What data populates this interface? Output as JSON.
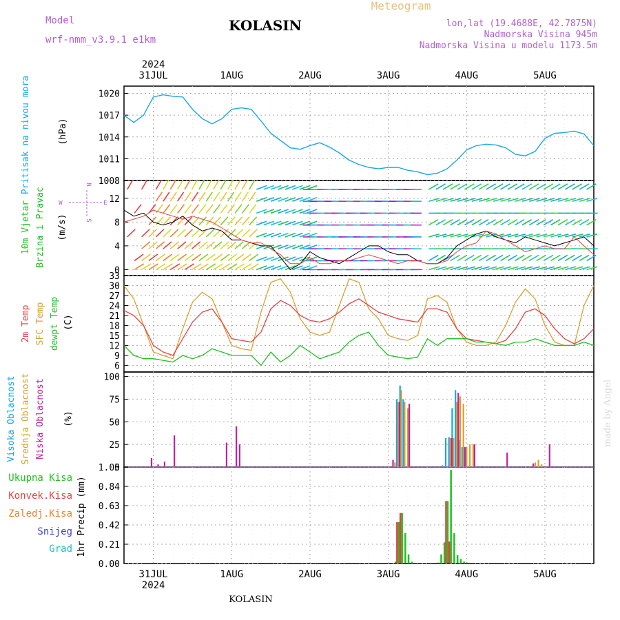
{
  "header": {
    "model_label": "Model",
    "model_name": "wrf-nmm_v3.9.1  e1km",
    "station": "KOLASIN",
    "product": "Meteogram",
    "lonlat": "lon,lat (19.4688E, 42.7875N)",
    "elevation": "Nadmorska Visina 945m",
    "model_elevation": "Nadmorska Visina u modelu 1173.5m"
  },
  "footer": {
    "station": "KOLASIN",
    "credit": "made by Angel"
  },
  "time_axis": {
    "year": "2024",
    "day_labels": [
      "31JUL",
      "1AUG",
      "2AUG",
      "3AUG",
      "4AUG",
      "5AUG"
    ],
    "start_hour_offset": -9,
    "end_hour": 135
  },
  "panels": {
    "pressure": {
      "title": "Pritisak na nivou mora",
      "unit": "(hPa)",
      "color": "#1aa6e8"
    },
    "wind": {
      "title_lines": [
        "10m Vjetar",
        "Brzina i Pravac"
      ],
      "unit": "(m/s)",
      "compass": [
        "N",
        "E",
        "W",
        "S"
      ]
    },
    "temperature": {
      "labels": [
        "2m Temp",
        "SFC Temp",
        "dewpt Temp"
      ],
      "unit": "(C)",
      "colors": {
        "t2m": "#e84040",
        "sfc": "#d9a030",
        "dew": "#20c020"
      }
    },
    "clouds": {
      "labels": [
        "Visoka Oblacnost",
        "Srednja Oblacnost",
        "Niska Oblacnost"
      ],
      "unit": "(%)",
      "colors": {
        "high": "#1aa6e8",
        "mid": "#d9a030",
        "low": "#c020a0"
      }
    },
    "precip": {
      "ylabel": "1hr Precip (mm)",
      "legend": [
        "Ukupna Kisa",
        "Konvek.Kisa",
        "Zaledj.Kisa",
        "Snijeg",
        "Grad"
      ],
      "legend_colors": [
        "#20c020",
        "#e84040",
        "#f08030",
        "#4040e0",
        "#20c0c0"
      ]
    }
  },
  "chart_data": [
    {
      "type": "line",
      "title": "Pritisak na nivou mora",
      "ylabel": "(hPa)",
      "ylim": [
        1008,
        1021
      ],
      "yticks": [
        1008,
        1011,
        1014,
        1017,
        1020
      ],
      "grid": true,
      "x": [
        -9,
        -6,
        -3,
        0,
        3,
        6,
        9,
        12,
        15,
        18,
        21,
        24,
        27,
        30,
        33,
        36,
        39,
        42,
        45,
        48,
        51,
        54,
        57,
        60,
        63,
        66,
        69,
        72,
        75,
        78,
        81,
        84,
        87,
        90,
        93,
        96,
        99,
        102,
        105,
        108,
        111,
        114,
        117,
        120,
        123,
        126,
        129,
        132,
        135
      ],
      "series": [
        {
          "values": [
            1017,
            1016,
            1017,
            1019.5,
            1019.8,
            1019.6,
            1019.5,
            1017.8,
            1016.5,
            1015.8,
            1016.5,
            1017.8,
            1018,
            1017.8,
            1016.2,
            1014.5,
            1013.5,
            1012.5,
            1012.3,
            1012.8,
            1013.2,
            1012.6,
            1011.8,
            1010.8,
            1010.2,
            1009.8,
            1009.6,
            1009.8,
            1009.8,
            1009.4,
            1009.2,
            1008.8,
            1009,
            1009.6,
            1010.8,
            1012.2,
            1012.8,
            1013,
            1012.9,
            1012.5,
            1011.6,
            1011.4,
            1012,
            1013.8,
            1014.5,
            1014.6,
            1014.8,
            1014.4,
            1012.8
          ]
        }
      ]
    },
    {
      "type": "line",
      "title": "10m Vjetar Brzina i Pravac",
      "ylabel": "(m/s)",
      "ylim": [
        -1,
        15
      ],
      "yticks": [
        0,
        4,
        8,
        12
      ],
      "grid": true,
      "x": [
        -9,
        -6,
        -3,
        0,
        3,
        6,
        9,
        12,
        15,
        18,
        21,
        24,
        27,
        30,
        33,
        36,
        39,
        42,
        45,
        48,
        51,
        54,
        57,
        60,
        63,
        66,
        69,
        72,
        75,
        78,
        81,
        84,
        87,
        90,
        93,
        96,
        99,
        102,
        105,
        108,
        111,
        114,
        117,
        120,
        123,
        126,
        129,
        132,
        135
      ],
      "series": [
        {
          "values": [
            10,
            9,
            9.5,
            8,
            7.5,
            8,
            9,
            7.5,
            6.5,
            7,
            6.5,
            5,
            5,
            4.5,
            4,
            4,
            2,
            0,
            1,
            3,
            2,
            1.5,
            1,
            2,
            3,
            4,
            4,
            3,
            2.5,
            2.5,
            1.5,
            1,
            1,
            2,
            4,
            5,
            6,
            6.5,
            5.5,
            5,
            4.5,
            5.5,
            5,
            4.5,
            4,
            4.5,
            5,
            5.5,
            4
          ]
        },
        {
          "values": [
            8,
            8.5,
            9,
            10,
            9.5,
            9,
            8.5,
            9,
            8.5,
            8,
            7,
            6,
            5,
            4.5,
            4.5,
            3.5,
            2.5,
            1,
            1,
            2,
            1,
            1,
            1.5,
            1.5,
            2,
            2.5,
            2,
            1.5,
            1,
            1.5,
            1.5,
            1,
            1,
            1.5,
            3,
            4,
            4.5,
            6.5,
            6,
            5,
            4,
            3,
            3.5,
            4,
            3.5,
            3.5,
            5.5,
            4,
            2.5
          ]
        }
      ]
    },
    {
      "type": "line",
      "title": "Temperature",
      "ylabel": "(C)",
      "ylim": [
        4,
        33
      ],
      "yticks": [
        6,
        9,
        12,
        15,
        18,
        21,
        24,
        27,
        30,
        33
      ],
      "grid": true,
      "x": [
        -9,
        -6,
        -3,
        0,
        3,
        6,
        9,
        12,
        15,
        18,
        21,
        24,
        27,
        30,
        33,
        36,
        39,
        42,
        45,
        48,
        51,
        54,
        57,
        60,
        63,
        66,
        69,
        72,
        75,
        78,
        81,
        84,
        87,
        90,
        93,
        96,
        99,
        102,
        105,
        108,
        111,
        114,
        117,
        120,
        123,
        126,
        129,
        132,
        135
      ],
      "series": [
        {
          "name": "2m Temp",
          "values": [
            22.5,
            21,
            18,
            12,
            10,
            9,
            14,
            19,
            22,
            23,
            19,
            14,
            13.5,
            13,
            16,
            23,
            25.5,
            24,
            21,
            19.5,
            19,
            20,
            22,
            24.5,
            26,
            24,
            22,
            21,
            20,
            19.5,
            19,
            23,
            23,
            22,
            17,
            14,
            13.5,
            13,
            12.5,
            13.5,
            17,
            22,
            23,
            21,
            17,
            14,
            12.5,
            14,
            17
          ]
        },
        {
          "name": "SFC Temp",
          "values": [
            30,
            26,
            18,
            10,
            9,
            8,
            17,
            25,
            28,
            26,
            19,
            12,
            11,
            10.5,
            22,
            31,
            32,
            28,
            20,
            16,
            15,
            16,
            24,
            32,
            31,
            23,
            20,
            15,
            14,
            13.5,
            15,
            26,
            27,
            25,
            17,
            13,
            12,
            12,
            13,
            18,
            25,
            29,
            26,
            18,
            13,
            12,
            12,
            24,
            30
          ]
        },
        {
          "name": "dewpt Temp",
          "values": [
            12,
            9,
            8,
            8,
            7.5,
            7,
            9,
            8,
            9,
            11,
            10,
            9,
            9,
            9,
            6,
            10,
            7,
            9,
            12,
            10,
            8,
            9,
            10,
            13,
            15,
            16,
            12,
            9,
            8.5,
            8,
            8.5,
            14,
            12,
            14,
            14,
            14,
            13,
            13,
            12.5,
            12,
            13,
            13,
            14,
            13,
            12,
            12,
            12,
            13,
            12
          ]
        }
      ]
    },
    {
      "type": "bar",
      "title": "Oblacnost",
      "ylabel": "(%)",
      "ylim": [
        0,
        105
      ],
      "yticks": [
        0,
        25,
        50,
        75,
        100
      ],
      "grid": true,
      "series": [
        {
          "name": "Visoka Oblacnost",
          "x": [
            75,
            76,
            77,
            89,
            90,
            91,
            92,
            93,
            94,
            95,
            96
          ],
          "values": [
            75,
            90,
            75,
            2,
            32,
            33,
            65,
            85,
            30,
            22,
            22
          ]
        },
        {
          "name": "Srednja Oblacnost",
          "x": [
            74,
            75,
            76,
            77,
            78,
            91,
            92,
            93,
            94,
            95,
            96,
            97,
            98,
            117,
            118,
            119
          ],
          "values": [
            5,
            72,
            85,
            72,
            65,
            32,
            32,
            72,
            78,
            70,
            22,
            25,
            25,
            5,
            8,
            3
          ]
        },
        {
          "name": "Niska Oblacnost",
          "x": [
            -1,
            1,
            3,
            6,
            22,
            25,
            26,
            73,
            75,
            78,
            91,
            93,
            95,
            98,
            108,
            116,
            121
          ],
          "values": [
            10,
            3,
            6,
            35,
            27,
            45,
            25,
            8,
            72,
            70,
            32,
            82,
            22,
            25,
            16,
            4,
            25
          ]
        }
      ]
    },
    {
      "type": "bar",
      "title": "1hr Precip",
      "ylabel": "1hr Precip (mm)",
      "ylim": [
        0,
        1.05
      ],
      "yticks": [
        0,
        0.21,
        0.42,
        0.63,
        0.84,
        1.05
      ],
      "grid": true,
      "series": [
        {
          "name": "Ukupna Kisa",
          "x": [
            74,
            75,
            76,
            77,
            78,
            79,
            87,
            88,
            89,
            90,
            91,
            92,
            93,
            94,
            95,
            96
          ],
          "values": [
            0.02,
            0.45,
            0.55,
            0.33,
            0.1,
            0.02,
            0.01,
            0.1,
            0.23,
            0.68,
            1.02,
            0.33,
            0.09,
            0.05,
            0.02,
            0.01
          ]
        },
        {
          "name": "Konvek.Kisa",
          "x": [
            75,
            76,
            90,
            91
          ],
          "values": [
            0.45,
            0.55,
            0.68,
            0.24
          ]
        }
      ]
    }
  ]
}
